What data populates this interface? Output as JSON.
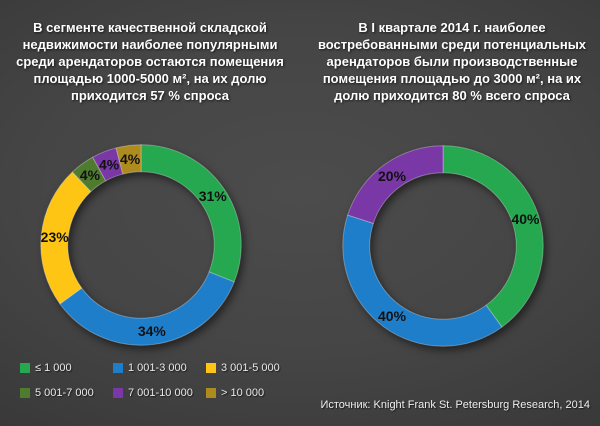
{
  "left_panel": {
    "title": "В сегменте качественной складской недвижимости наиболее популярными среди арендаторов остаются помещения площадью 1000-5000 м², на их долю приходится 57 % спроса"
  },
  "right_panel": {
    "title": "В I квартале 2014 г. наиболее востребованными среди потенциальных арендаторов были производственные помещения площадью до 3000 м², на их долю приходится 80 % всего спроса"
  },
  "source": "Источник: Knight Frank St. Petersburg Research, 2014",
  "colors": {
    "green": "#25A84F",
    "blue": "#1F7EC9",
    "yellow": "#FFC515",
    "olive_green": "#4F7B2F",
    "purple": "#7938A6",
    "dark_gold": "#AE8B1E",
    "label_text": "#111111",
    "title_text": "#ffffff"
  },
  "legend": {
    "items": [
      {
        "label": "≤ 1 000",
        "color": "#25A84F"
      },
      {
        "label": "1 001-3 000",
        "color": "#1F7EC9"
      },
      {
        "label": "3 001-5 000",
        "color": "#FFC515"
      },
      {
        "label": "5 001-7 000",
        "color": "#4F7B2F"
      },
      {
        "label": "7 001-10 000",
        "color": "#7938A6"
      },
      {
        "label": "> 10 000",
        "color": "#AE8B1E"
      }
    ]
  },
  "chart_data": [
    {
      "type": "pie",
      "subtype": "donut",
      "title": "В сегменте качественной складской недвижимости наиболее популярными среди арендаторов остаются помещения площадью 1000-5000 м², на их долю приходится 57 % спроса",
      "start_angle_deg": 0,
      "direction": "clockwise",
      "categories": [
        "≤ 1 000",
        "1 001-3 000",
        "3 001-5 000",
        "5 001-7 000",
        "7 001-10 000",
        "> 10 000"
      ],
      "values": [
        31,
        34,
        23,
        4,
        4,
        4
      ],
      "segments": [
        {
          "category": "≤ 1 000",
          "value": 31,
          "display_label": "31%",
          "color": "#25A84F"
        },
        {
          "category": "1 001-3 000",
          "value": 34,
          "display_label": "34%",
          "color": "#1F7EC9"
        },
        {
          "category": "3 001-5 000",
          "value": 23,
          "display_label": "23%",
          "color": "#FFC515"
        },
        {
          "category": "5 001-7 000",
          "value": 4,
          "display_label": "4%",
          "color": "#4F7B2F"
        },
        {
          "category": "7 001-10 000",
          "value": 4,
          "display_label": "4%",
          "color": "#7938A6"
        },
        {
          "category": "> 10 000",
          "value": 4,
          "display_label": "4%",
          "color": "#AE8B1E"
        }
      ]
    },
    {
      "type": "pie",
      "subtype": "donut",
      "title": "В I квартале 2014 г. наиболее востребованными среди потенциальных арендаторов были производственные помещения площадью до 3000 м², на их долю приходится 80 % всего спроса",
      "start_angle_deg": 0,
      "direction": "clockwise",
      "categories": [
        "≤ 1 000",
        "1 001-3 000",
        "7 001-10 000"
      ],
      "values": [
        40,
        40,
        20
      ],
      "segments": [
        {
          "category": "≤ 1 000",
          "value": 40,
          "display_label": "40%",
          "color": "#25A84F"
        },
        {
          "category": "1 001-3 000",
          "value": 40,
          "display_label": "40%",
          "color": "#1F7EC9"
        },
        {
          "category": "7 001-10 000",
          "value": 20,
          "display_label": "20%",
          "color": "#7938A6"
        }
      ]
    }
  ]
}
